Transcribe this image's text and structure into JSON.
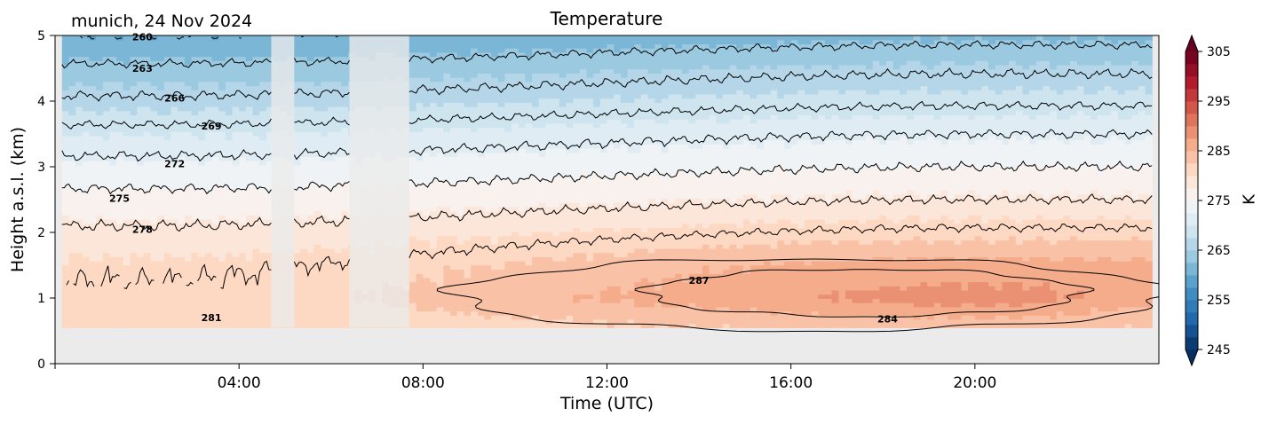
{
  "chart_data": {
    "type": "heatmap",
    "site_title": "munich, 24 Nov 2024",
    "title": "Temperature",
    "xlabel": "Time (UTC)",
    "ylabel": "Height a.s.l. (km)",
    "xlim": [
      0,
      24
    ],
    "ylim": [
      0,
      5
    ],
    "x_ticks": [
      {
        "value": 4,
        "label": "04:00"
      },
      {
        "value": 8,
        "label": "08:00"
      },
      {
        "value": 12,
        "label": "12:00"
      },
      {
        "value": 16,
        "label": "16:00"
      },
      {
        "value": 20,
        "label": "20:00"
      }
    ],
    "y_ticks": [
      {
        "value": 0,
        "label": "0"
      },
      {
        "value": 1,
        "label": "1"
      },
      {
        "value": 2,
        "label": "2"
      },
      {
        "value": 3,
        "label": "3"
      },
      {
        "value": 4,
        "label": "4"
      },
      {
        "value": 5,
        "label": "5"
      }
    ],
    "data_bottom_km": 0.55,
    "data_time_range": [
      0.15,
      23.85
    ],
    "missing_data_gaps": [
      [
        4.7,
        5.2
      ],
      [
        6.4,
        7.7
      ]
    ],
    "colorbar": {
      "label": "K",
      "range": [
        245,
        305
      ],
      "ticks": [
        245,
        255,
        265,
        275,
        285,
        295,
        305
      ],
      "extend": "both",
      "colormap": "RdBu_r",
      "extend_low_color": "#053061",
      "extend_high_color": "#67001f"
    },
    "temperature_profile_K": {
      "heights_km": [
        0.55,
        1.0,
        1.5,
        2.0,
        2.5,
        3.0,
        3.5,
        4.0,
        4.5,
        5.0
      ],
      "morning_h2": [
        280.5,
        281.5,
        280.5,
        278.5,
        276.0,
        273.0,
        270.0,
        266.5,
        263.5,
        260.0
      ],
      "evening_h20": [
        283.0,
        288.0,
        286.0,
        281.5,
        278.0,
        275.0,
        272.0,
        268.5,
        265.5,
        262.0
      ]
    },
    "contour_interval_K": 3,
    "contour_labels": [
      {
        "text": "260",
        "x": 1.9,
        "y": 4.98
      },
      {
        "text": "263",
        "x": 1.9,
        "y": 4.5
      },
      {
        "text": "266",
        "x": 2.6,
        "y": 4.05
      },
      {
        "text": "269",
        "x": 3.4,
        "y": 3.62
      },
      {
        "text": "272",
        "x": 2.6,
        "y": 3.05
      },
      {
        "text": "275",
        "x": 1.4,
        "y": 2.52
      },
      {
        "text": "278",
        "x": 1.9,
        "y": 2.05
      },
      {
        "text": "281",
        "x": 3.4,
        "y": 0.7
      },
      {
        "text": "287",
        "x": 14.0,
        "y": 1.27
      },
      {
        "text": "284",
        "x": 18.1,
        "y": 0.68
      }
    ],
    "grid": false
  }
}
